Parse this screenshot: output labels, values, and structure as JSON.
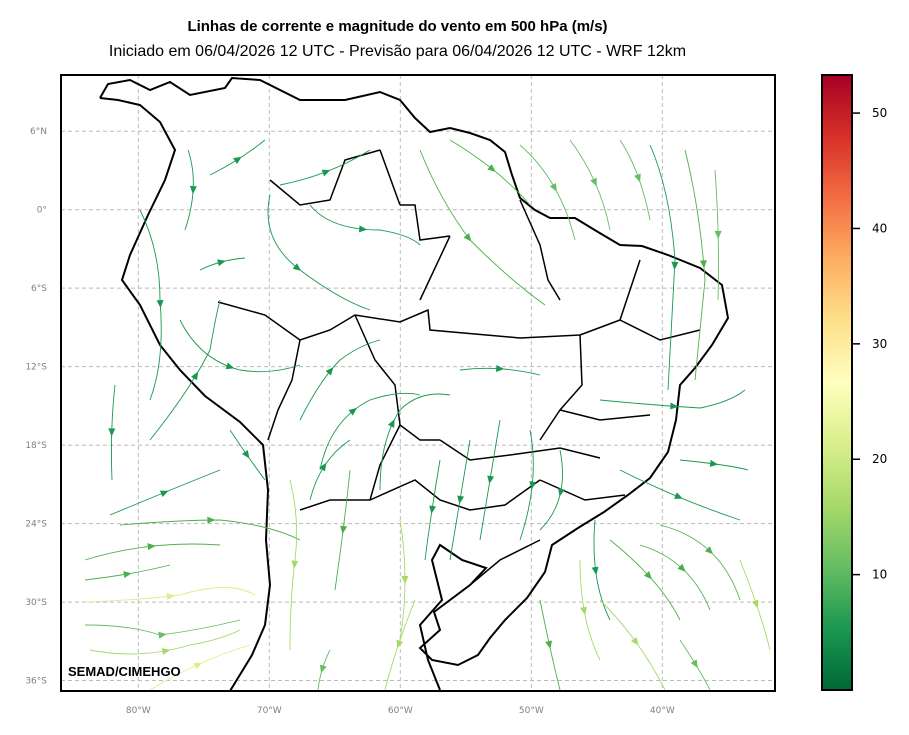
{
  "title": "Linhas de corrente e magnitude do vento em 500 hPa (m/s)",
  "subtitle": "Iniciado em 06/04/2026 12 UTC - Previsão para 06/04/2026 12 UTC - WRF 12km",
  "watermark": "SEMAD/CIMEHGO",
  "map": {
    "type": "streamlines",
    "variable": "wind at 500 hPa",
    "lon_range": [
      -85.9,
      -31.4
    ],
    "lat_range": [
      -36.8,
      10.3
    ],
    "grid": true,
    "lon_ticks": [
      {
        "v": -80,
        "label": "80°W"
      },
      {
        "v": -70,
        "label": "70°W"
      },
      {
        "v": -60,
        "label": "60°W"
      },
      {
        "v": -50,
        "label": "50°W"
      },
      {
        "v": -40,
        "label": "40°W"
      }
    ],
    "lat_ticks": [
      {
        "v": 6,
        "label": "6°N"
      },
      {
        "v": 0,
        "label": "0°"
      },
      {
        "v": -6,
        "label": "6°S"
      },
      {
        "v": -12,
        "label": "12°S"
      },
      {
        "v": -18,
        "label": "18°S"
      },
      {
        "v": -24,
        "label": "24°S"
      },
      {
        "v": -30,
        "label": "30°S"
      },
      {
        "v": -36,
        "label": "36°S"
      }
    ]
  },
  "colorbar": {
    "colormap": "RdYlGn_r",
    "range": [
      0,
      53.3
    ],
    "ticks": [
      {
        "v": 10,
        "label": "10"
      },
      {
        "v": 20,
        "label": "20"
      },
      {
        "v": 30,
        "label": "30"
      },
      {
        "v": 40,
        "label": "40"
      },
      {
        "v": 50,
        "label": "50"
      }
    ],
    "colors": [
      "#006837",
      "#1a9850",
      "#66bd63",
      "#a6d96a",
      "#d9ef8b",
      "#ffffbf",
      "#fee08b",
      "#fdae61",
      "#f46d43",
      "#d73027",
      "#a50026"
    ]
  }
}
